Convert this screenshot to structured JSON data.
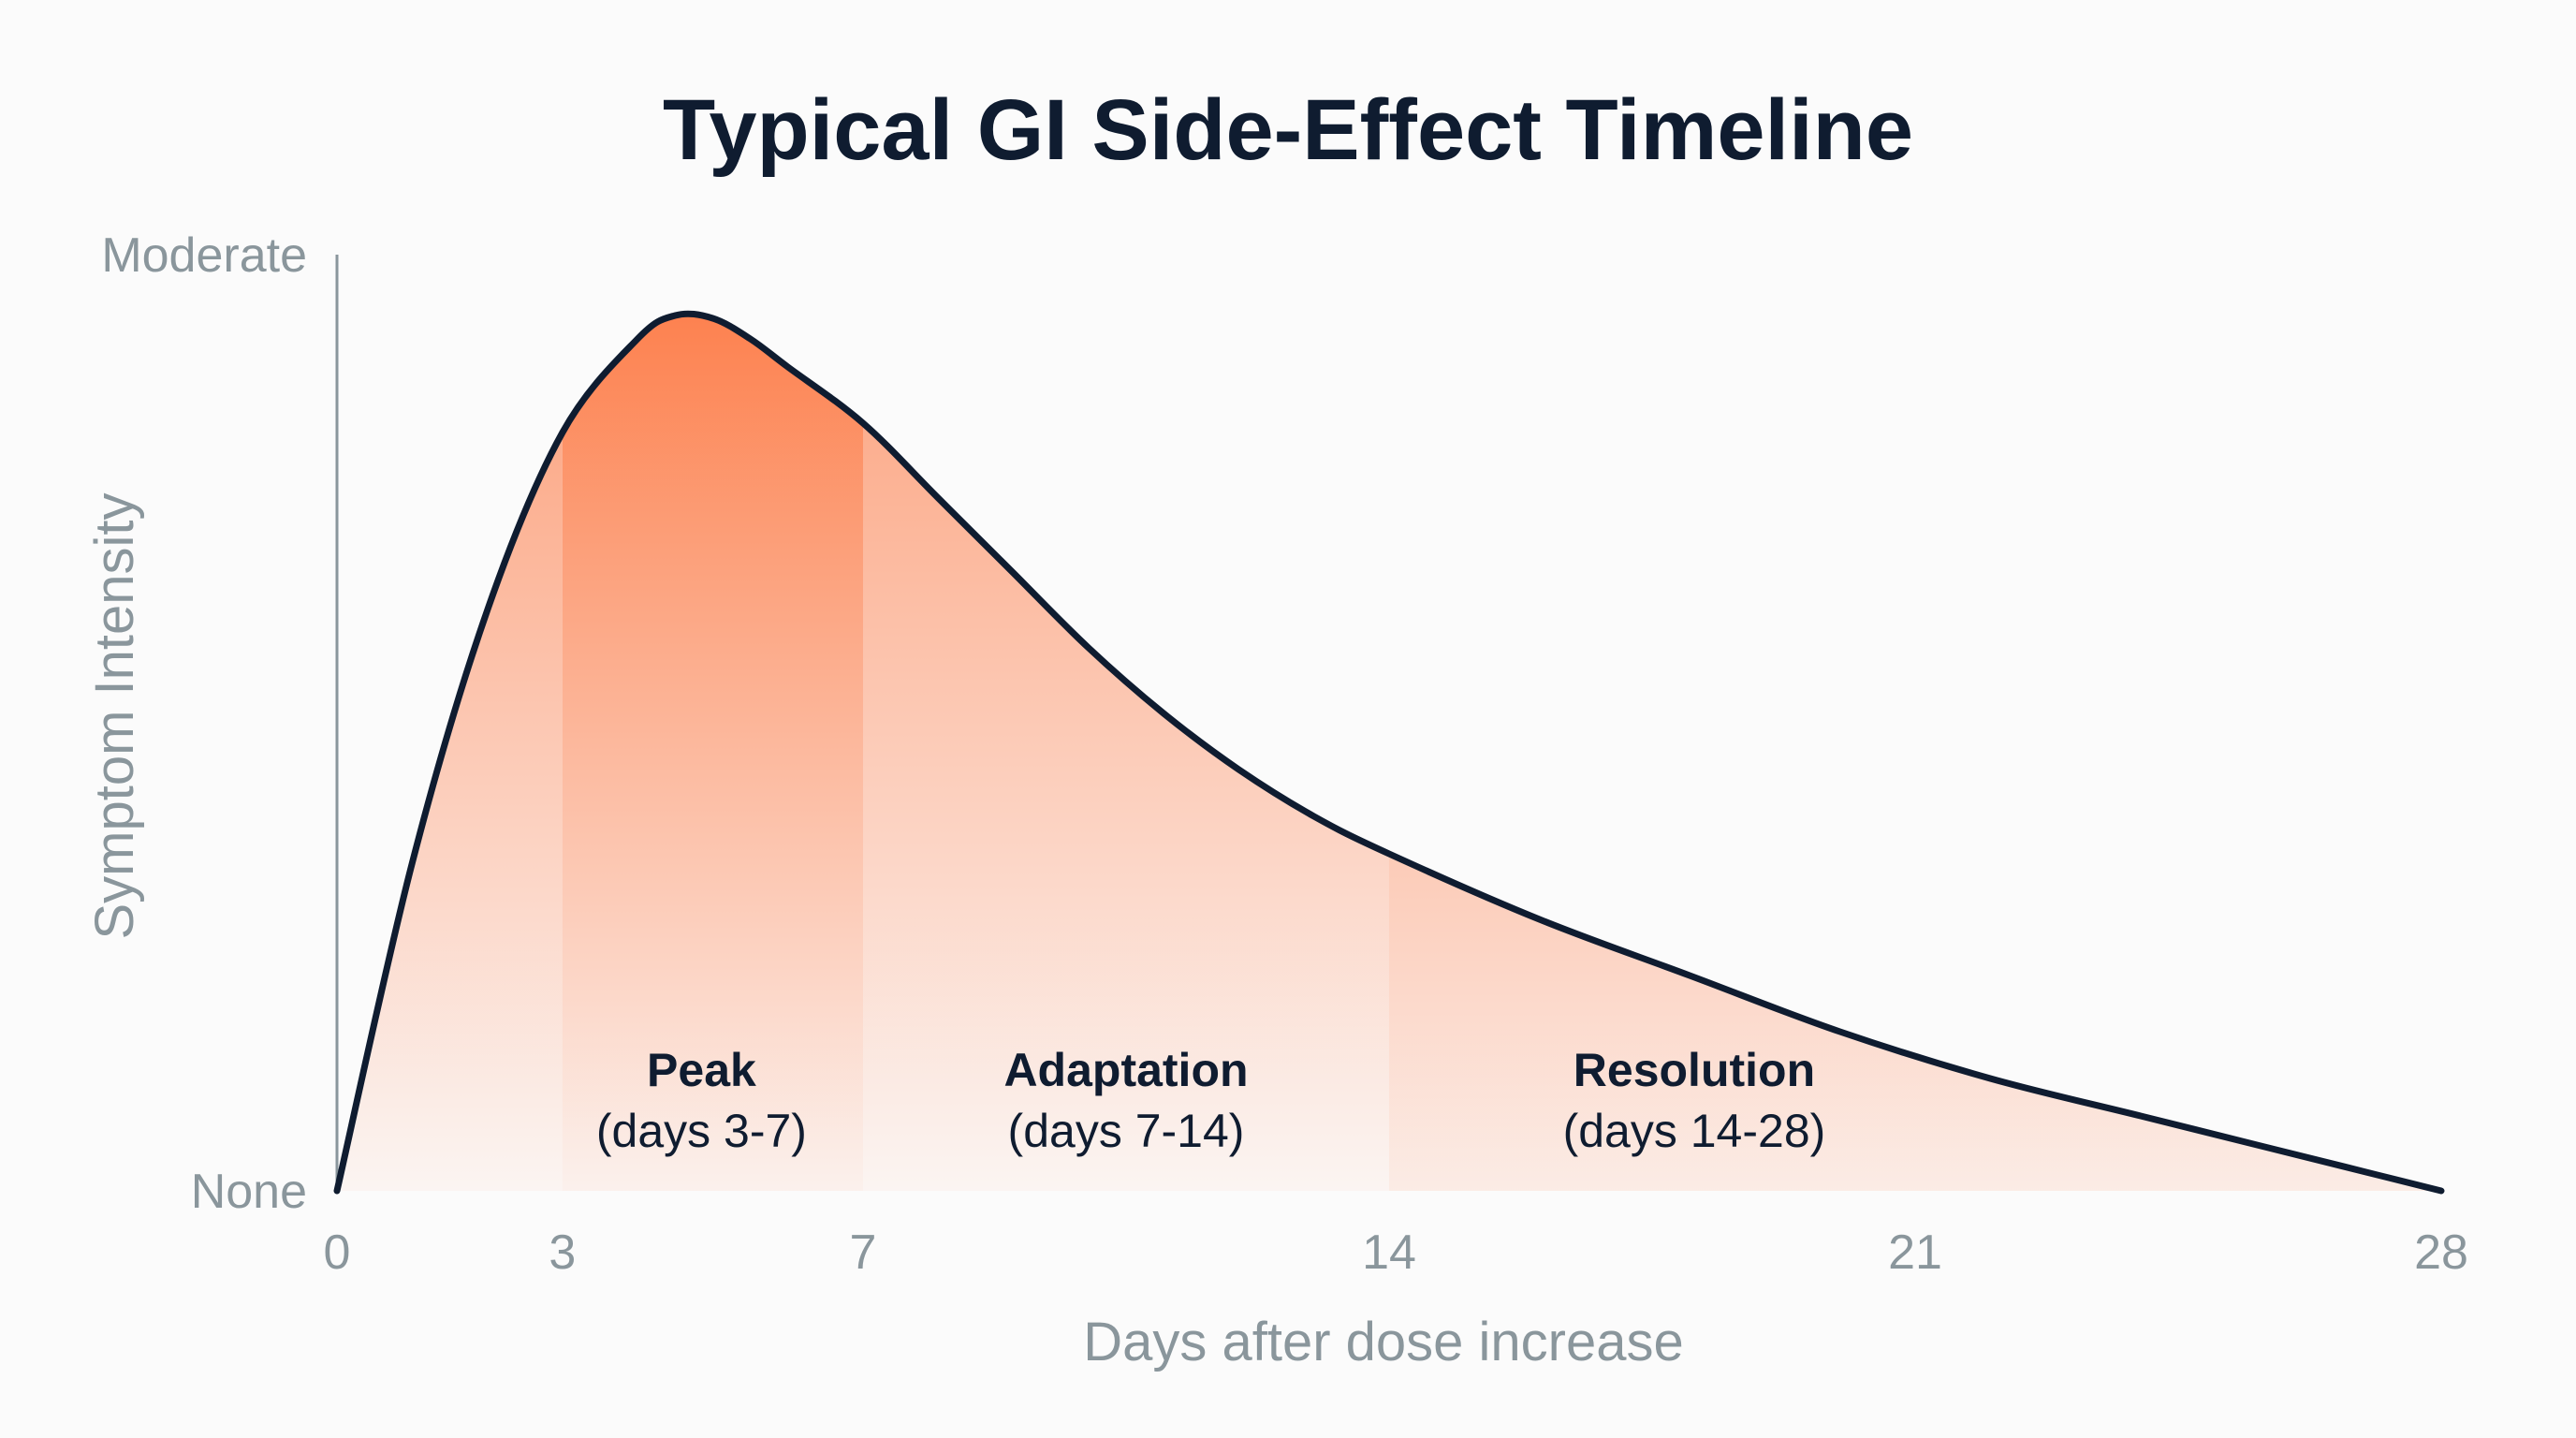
{
  "chart_data": {
    "type": "area",
    "title": "Typical GI Side-Effect Timeline",
    "xlabel": "Days after dose increase",
    "ylabel": "Symptom Intensity",
    "x_ticks": [
      0,
      3,
      7,
      14,
      21,
      28
    ],
    "y_tick_labels": [
      {
        "value": 0,
        "label": "None"
      },
      {
        "value": 1,
        "label": "Moderate"
      }
    ],
    "xlim": [
      0,
      28
    ],
    "ylim": [
      0,
      1
    ],
    "grid": false,
    "curve": {
      "x": [
        0,
        1,
        2,
        3,
        4,
        4.5,
        5,
        5.5,
        6,
        7,
        8,
        9,
        10,
        11,
        12,
        13,
        14,
        16,
        18,
        20,
        22,
        24,
        26,
        27,
        28
      ],
      "y": [
        0,
        0.35,
        0.62,
        0.81,
        0.91,
        0.935,
        0.932,
        0.91,
        0.88,
        0.82,
        0.74,
        0.66,
        0.58,
        0.51,
        0.45,
        0.4,
        0.36,
        0.29,
        0.23,
        0.17,
        0.12,
        0.08,
        0.04,
        0.02,
        0
      ]
    },
    "phases": [
      {
        "name": "Peak",
        "range": "(days 3-7)",
        "start": 3,
        "end": 7
      },
      {
        "name": "Adaptation",
        "range": "(days 7-14)",
        "start": 7,
        "end": 14
      },
      {
        "name": "Resolution",
        "range": "(days 14-28)",
        "start": 14,
        "end": 28
      }
    ],
    "colors": {
      "fill_strong": "#fd7a45",
      "fill_light": "#fef4ef",
      "line": "#0f1c30",
      "axis": "#8a969c",
      "text": "#0f1c30"
    }
  }
}
